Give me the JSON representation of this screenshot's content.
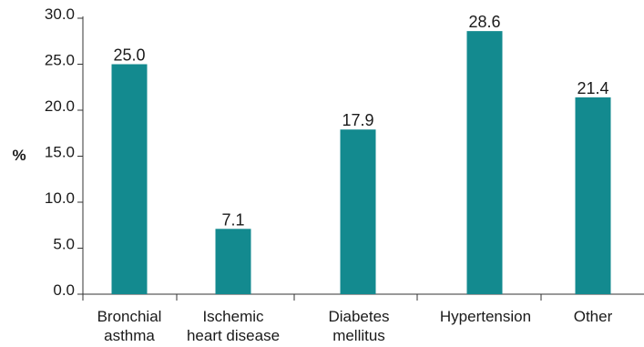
{
  "chart_data": {
    "type": "bar",
    "categories": [
      [
        "Bronchial",
        "asthma"
      ],
      [
        "Ischemic",
        "heart disease"
      ],
      [
        "Diabetes",
        "mellitus"
      ],
      [
        "Hypertension"
      ],
      [
        "Other"
      ]
    ],
    "values": [
      25.0,
      7.1,
      17.9,
      28.6,
      21.4
    ],
    "value_labels": [
      "25.0",
      "7.1",
      "17.9",
      "28.6",
      "21.4"
    ],
    "ylabel": "%",
    "yticks": [
      "0.0",
      "5.0",
      "10.0",
      "15.0",
      "20.0",
      "25.0",
      "30.0"
    ],
    "ylim": [
      0,
      30
    ],
    "grid": false,
    "legend": "none",
    "bar_color": "#138a8f",
    "axis_color": "#333333"
  }
}
